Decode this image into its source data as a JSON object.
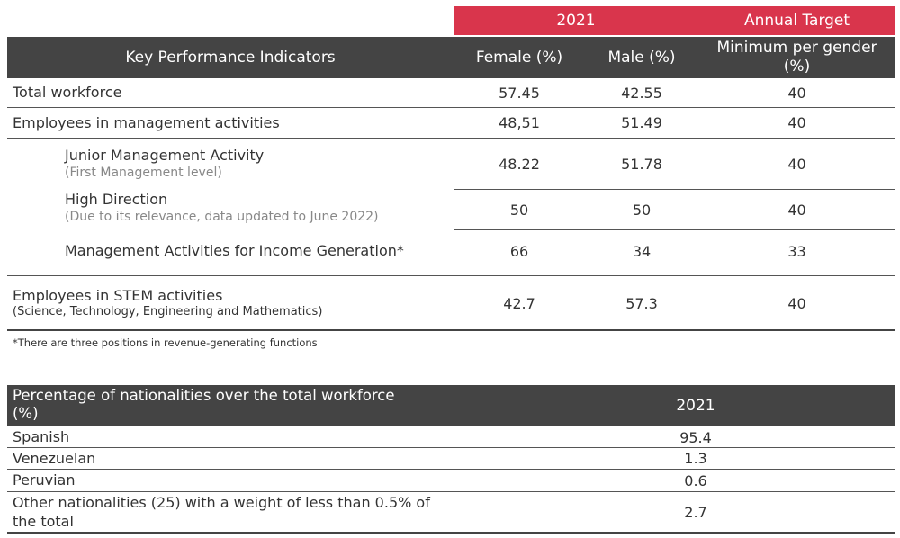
{
  "kpi_table": {
    "year_header": "2021",
    "target_header": "Annual Target",
    "kpi_header": "Key Performance Indicators",
    "female_header": "Female (%)",
    "male_header": "Male (%)",
    "min_header_line1": "Minimum per gender",
    "min_header_line2": "(%)",
    "rows": [
      {
        "label": "Total workforce",
        "sublabel": "",
        "female": "57.45",
        "male": "42.55",
        "target": "40"
      },
      {
        "label": "Employees in management activities",
        "sublabel": "",
        "female": "48,51",
        "male": "51.49",
        "target": "40"
      },
      {
        "label": "Junior Management Activity",
        "sublabel": "(First Management level)",
        "female": "48.22",
        "male": "51.78",
        "target": "40"
      },
      {
        "label": "High Direction",
        "sublabel": "(Due to its relevance, data updated to June 2022)",
        "female": "50",
        "male": "50",
        "target": "40"
      },
      {
        "label": "Management Activities for Income Generation*",
        "sublabel": "",
        "female": "66",
        "male": "34",
        "target": "33"
      },
      {
        "label": "Employees in STEM activities",
        "sublabel": "(Science, Technology, Engineering and Mathematics)",
        "female": "42.7",
        "male": "57.3",
        "target": "40"
      }
    ],
    "footnote": "*There are three positions in revenue-generating functions"
  },
  "nationality_table": {
    "header_line1": "Percentage of nationalities over the total workforce",
    "header_line2": "(%)",
    "year_header": "2021",
    "rows": [
      {
        "label": "Spanish",
        "value": "95.4"
      },
      {
        "label": "Venezuelan",
        "value": "1.3"
      },
      {
        "label": "Peruvian",
        "value": "0.6"
      },
      {
        "label_line1": "Other nationalities (25) with a weight of less than 0.5% of",
        "label_line2": "the total",
        "value": "2.7"
      }
    ]
  }
}
